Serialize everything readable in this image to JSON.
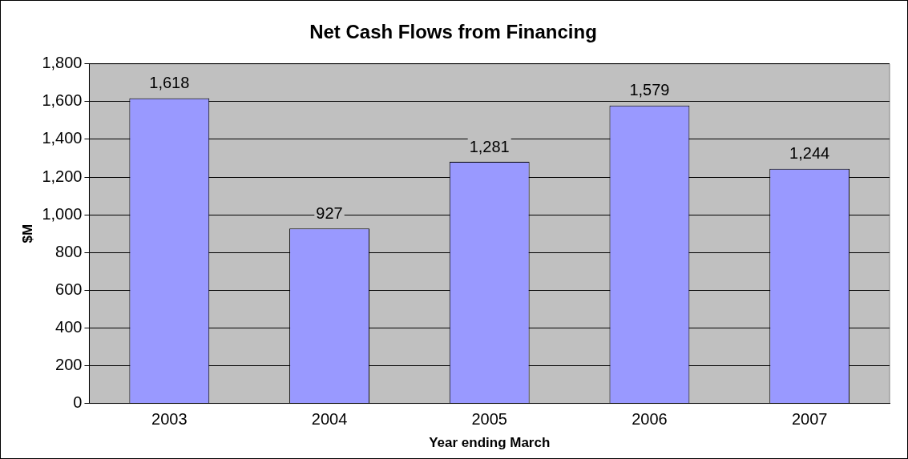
{
  "chart_data": {
    "type": "bar",
    "title": "Net Cash Flows from Financing",
    "xlabel": "Year ending March",
    "ylabel": "$M",
    "categories": [
      "2003",
      "2004",
      "2005",
      "2006",
      "2007"
    ],
    "values": [
      1618,
      927,
      1281,
      1579,
      1244
    ],
    "value_labels": [
      "1,618",
      "927",
      "1,281",
      "1,579",
      "1,244"
    ],
    "color": "#9999ff",
    "ylim": [
      0,
      1800
    ],
    "yticks": [
      0,
      200,
      400,
      600,
      800,
      {
        "value": 1000,
        "label": "1,000"
      },
      {
        "value": 1200,
        "label": "1,200"
      },
      {
        "value": 1400,
        "label": "1,400"
      },
      {
        "value": 1600,
        "label": "1,600"
      },
      {
        "value": 1800,
        "label": "1,800"
      }
    ],
    "grid": "y",
    "legend": false
  }
}
